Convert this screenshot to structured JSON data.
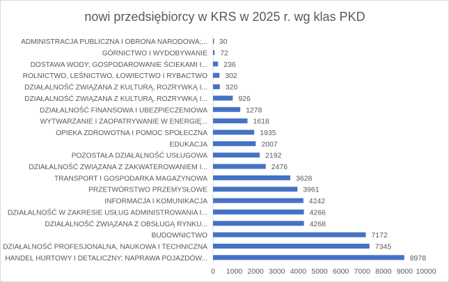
{
  "chart_data": {
    "type": "bar",
    "orientation": "horizontal",
    "title": "nowi przedsiębiorcy w KRS w 2025 r. wg klas PKD",
    "categories": [
      "ADMINISTRACJA PUBLICZNA I OBRONA NARODOWA;...",
      "GÓRNICTWO I WYDOBYWANIE",
      "DOSTAWA WODY; GOSPODAROWANIE ŚCIEKAMI I...",
      "ROLNICTWO, LEŚNICTWO, ŁOWIECTWO I RYBACTWO",
      "DZIAŁALNOŚĆ ZWIĄZANA Z KULTURĄ, ROZRYWKĄ I...",
      "DZIAŁALNOŚĆ ZWIĄZANA Z KULTURĄ, ROZRYWKĄ I...",
      "DZIAŁALNOŚĆ FINANSOWA I UBEZPIECZENIOWA",
      "WYTWARZANIE I ZAOPATRYWANIE W ENERGIĘ...",
      "OPIEKA ZDROWOTNA I POMOC SPOŁECZNA",
      "EDUKACJA",
      "POZOSTAŁA DZIAŁALNOŚĆ USŁUGOWA",
      "DZIAŁALNOŚĆ ZWIĄZANA Z ZAKWATEROWANIEM I...",
      "TRANSPORT I GOSPODARKA MAGAZYNOWA",
      "PRZETWÓRSTWO PRZEMYSŁOWE",
      "INFORMACJA I KOMUNIKACJA",
      "DZIAŁALNOŚĆ W ZAKRESIE USŁUG ADMINISTROWANIA I...",
      "DZIAŁALNOŚĆ ZWIĄZANA Z OBSŁUGĄ RYNKU...",
      "BUDOWNICTWO",
      "DZIAŁALNOŚĆ PROFESJONALNA, NAUKOWA I TECHNICZNA",
      "HANDEL HURTOWY I DETALICZNY; NAPRAWA POJAZDÓW..."
    ],
    "values": [
      30,
      72,
      236,
      302,
      320,
      926,
      1278,
      1618,
      1935,
      2007,
      2192,
      2476,
      3628,
      3961,
      4242,
      4266,
      4268,
      7172,
      7345,
      8978
    ],
    "xlim": [
      0,
      10000
    ],
    "xticks": [
      "0",
      "1000",
      "2000",
      "3000",
      "4000",
      "5000",
      "6000",
      "7000",
      "8000",
      "9000",
      "10000"
    ],
    "grid": false,
    "legend": "none",
    "bar_color": "#4472C4"
  }
}
